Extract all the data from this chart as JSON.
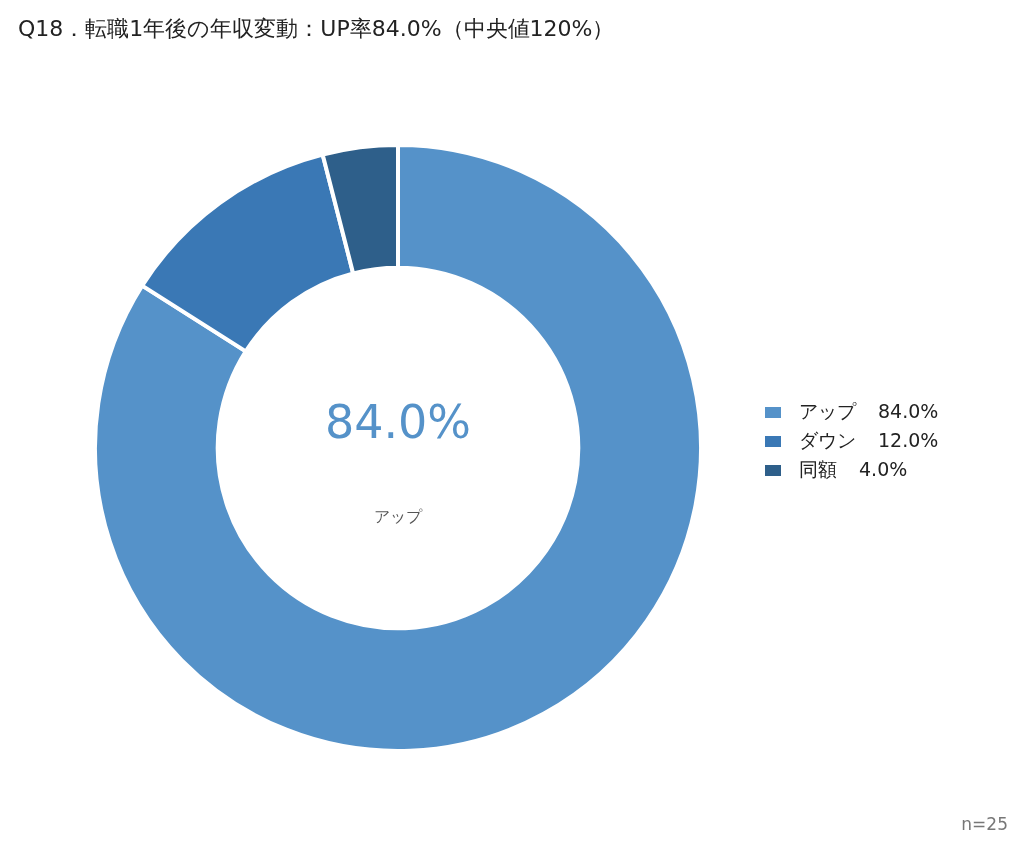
{
  "chart_data": {
    "type": "donut",
    "title": "Q18．転職1年後の年収変動：UP率84.0%（中央値120%）",
    "categories": [
      "アップ",
      "ダウン",
      "同額"
    ],
    "values": [
      84,
      12,
      4
    ],
    "value_labels": [
      "84.0%",
      "12.0%",
      "4.0%"
    ],
    "colors": [
      "#5592c9",
      "#3a78b5",
      "#2e5f8a"
    ],
    "legend": "right",
    "annotations": [
      "84.0%",
      "アップ",
      "n=25"
    ]
  }
}
